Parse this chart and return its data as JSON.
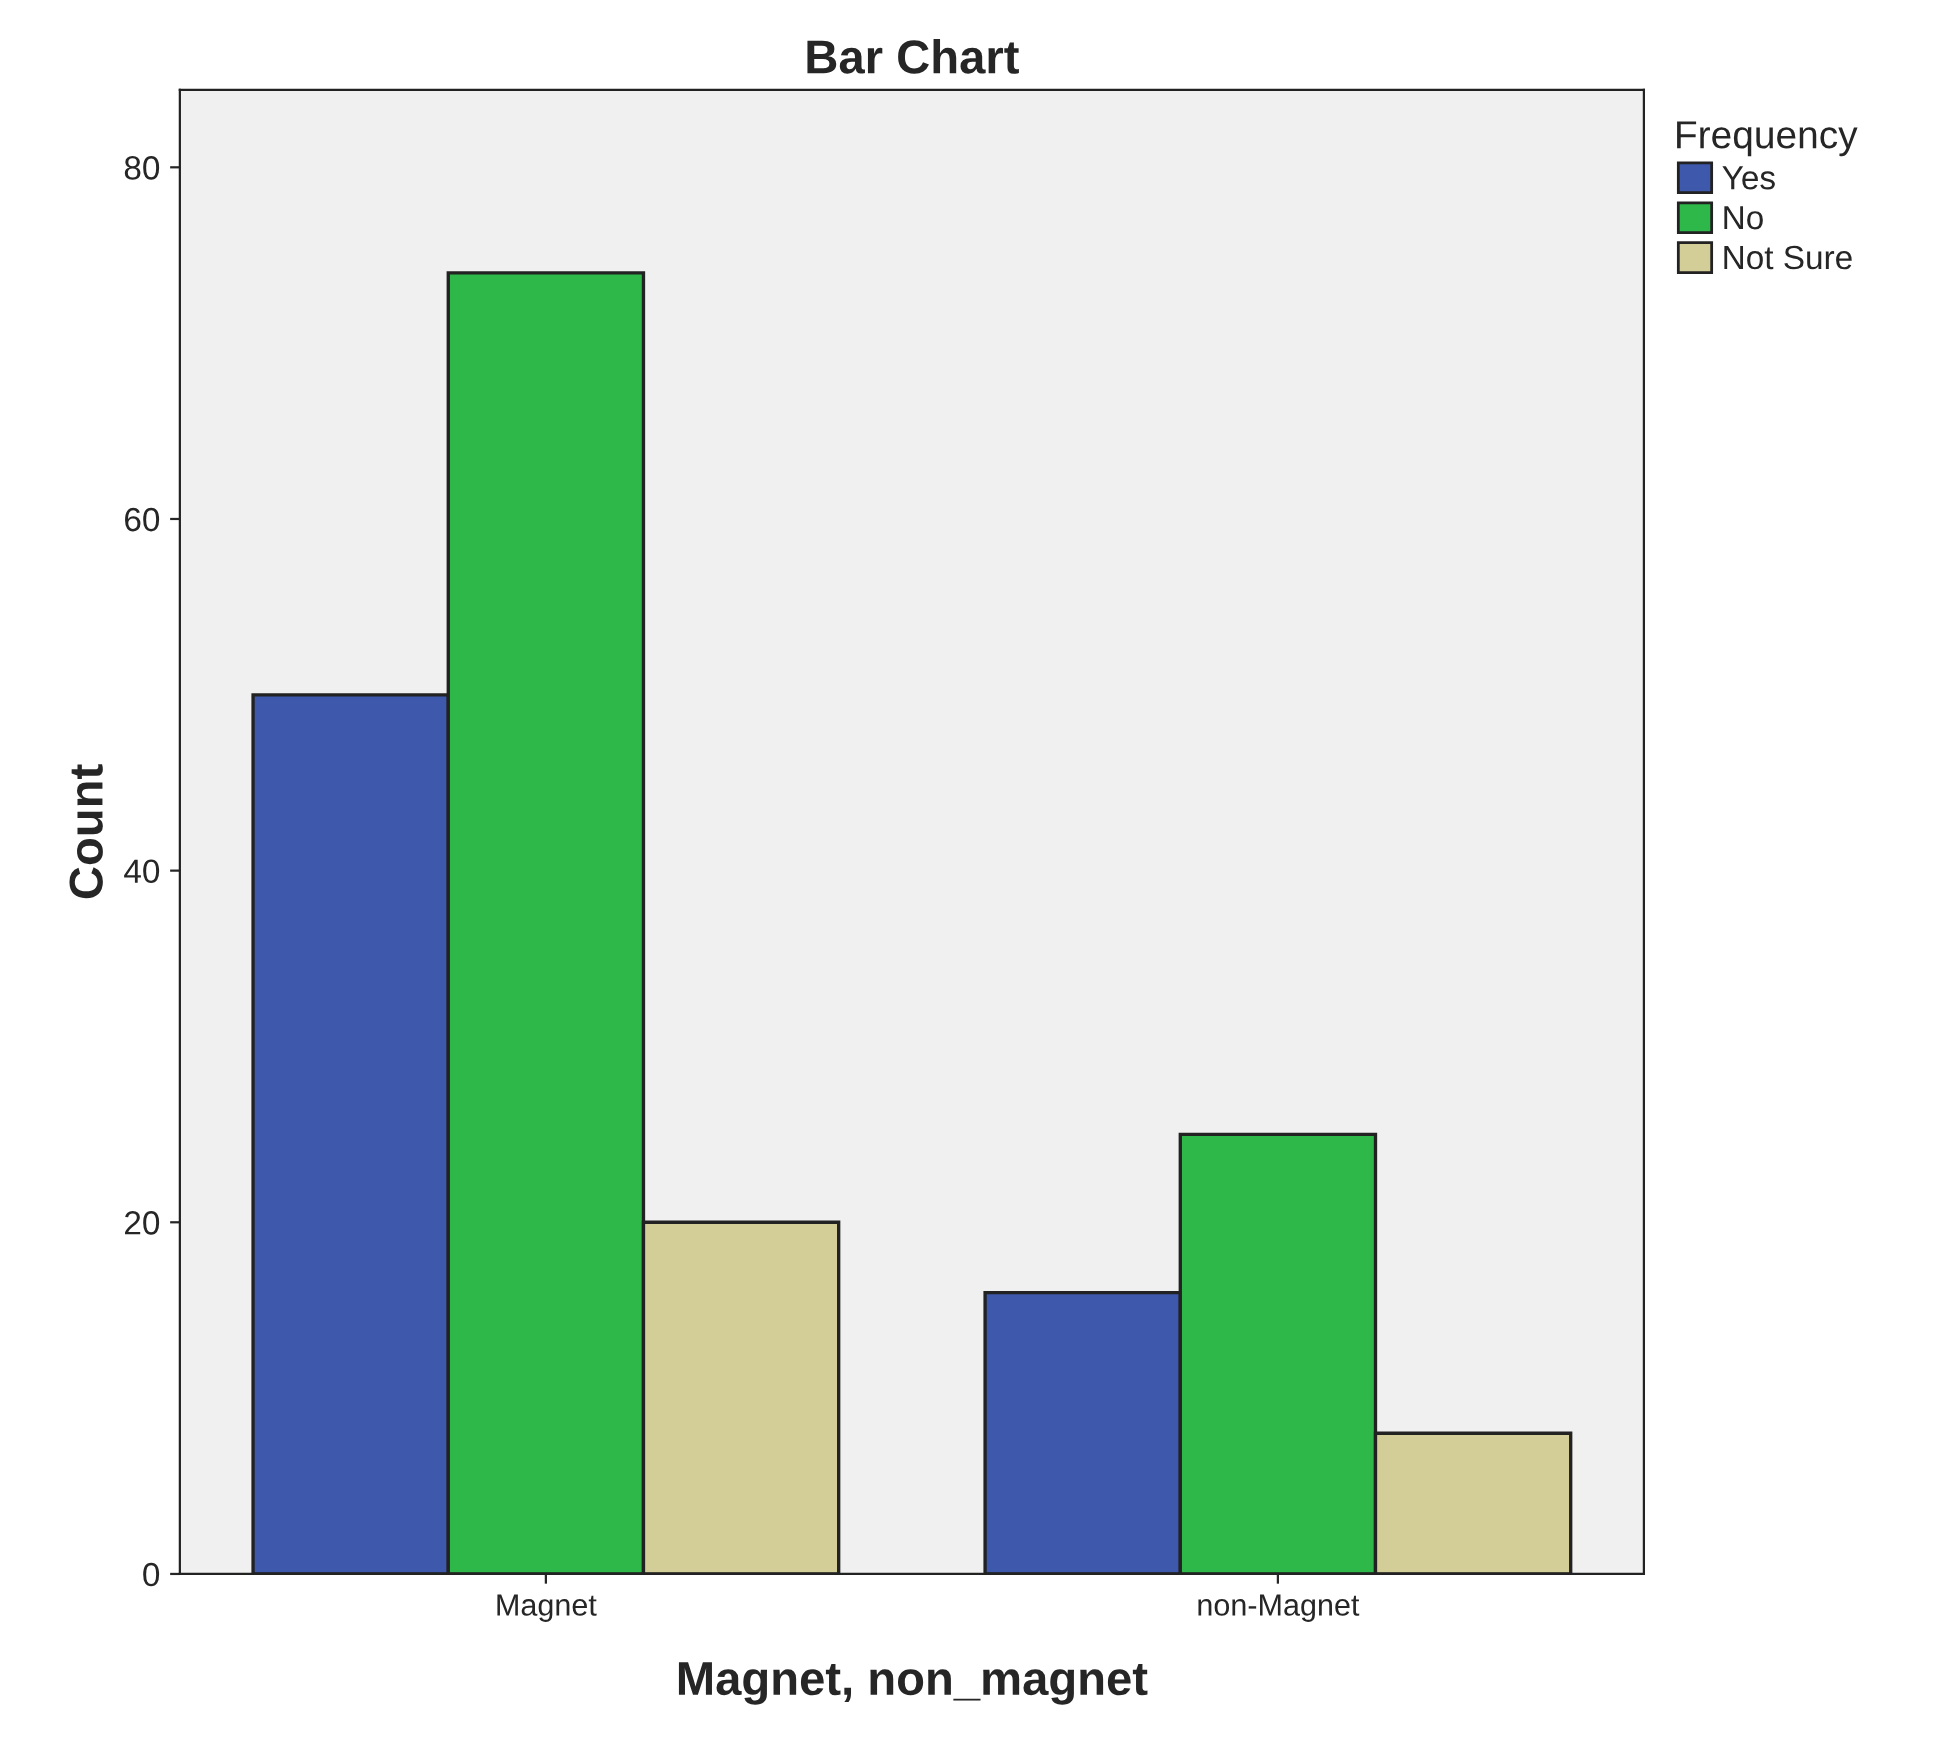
{
  "chart_data": {
    "type": "bar",
    "title": "Bar Chart",
    "xlabel": "Magnet, non_magnet",
    "ylabel": "Count",
    "legend_title": "Frequency",
    "categories": [
      "Magnet",
      "non-Magnet"
    ],
    "series": [
      {
        "name": "Yes",
        "color": "#3e58ac",
        "values": [
          50,
          16
        ]
      },
      {
        "name": "No",
        "color": "#2eb84a",
        "values": [
          74,
          25
        ]
      },
      {
        "name": "Not Sure",
        "color": "#d3ce97",
        "values": [
          20,
          8
        ]
      }
    ],
    "ylim": [
      0,
      84.4
    ],
    "yticks": [
      0,
      20,
      40,
      60,
      80
    ],
    "grid": false,
    "legend": "top right"
  }
}
